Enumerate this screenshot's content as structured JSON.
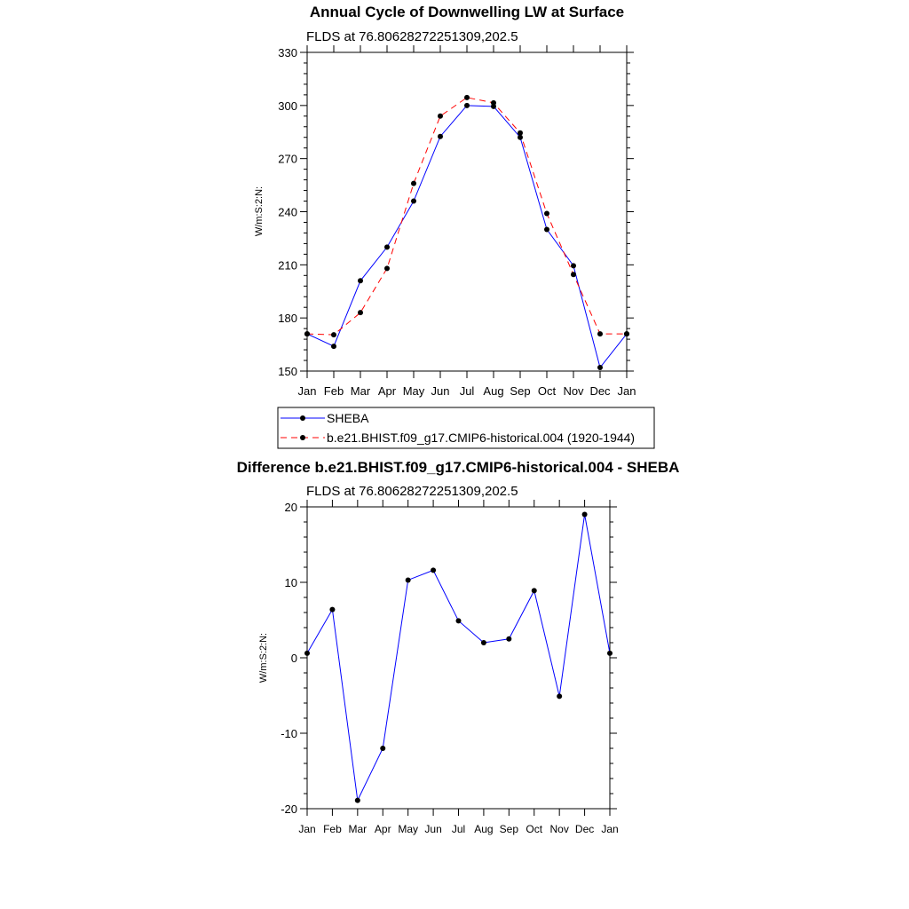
{
  "chart_data": [
    {
      "type": "line",
      "title": "Annual Cycle of Downwelling LW at Surface",
      "subtitle": "FLDS at 76.80628272251309,202.5",
      "xlabel": "",
      "ylabel": "W/m:S:2:N:",
      "categories": [
        "Jan",
        "Feb",
        "Mar",
        "Apr",
        "May",
        "Jun",
        "Jul",
        "Aug",
        "Sep",
        "Oct",
        "Nov",
        "Dec",
        "Jan"
      ],
      "ylim": [
        150,
        330
      ],
      "yticks": [
        150,
        180,
        210,
        240,
        270,
        300,
        330
      ],
      "series": [
        {
          "name": "SHEBA",
          "color": "#0000ff",
          "dash": "solid",
          "values": [
            171,
            164,
            201,
            220,
            246,
            282.5,
            300,
            299.5,
            282,
            230,
            209.5,
            152,
            171
          ]
        },
        {
          "name": "b.e21.BHIST.f09_g17.CMIP6-historical.004 (1920-1944)",
          "color": "#ff0000",
          "dash": "dashed",
          "values": [
            171,
            170.5,
            183,
            208,
            256,
            294,
            304.5,
            301.5,
            284.5,
            239,
            204.5,
            171,
            171
          ]
        }
      ],
      "legend": "below"
    },
    {
      "type": "line",
      "title": "Difference b.e21.BHIST.f09_g17.CMIP6-historical.004 - SHEBA",
      "subtitle": "FLDS at 76.80628272251309,202.5",
      "xlabel": "",
      "ylabel": "W/m:S:2:N:",
      "categories": [
        "Jan",
        "Feb",
        "Mar",
        "Apr",
        "May",
        "Jun",
        "Jul",
        "Aug",
        "Sep",
        "Oct",
        "Nov",
        "Dec",
        "Jan"
      ],
      "ylim": [
        -20,
        20
      ],
      "yticks": [
        -20,
        -10,
        0,
        10,
        20
      ],
      "series": [
        {
          "color": "#0000ff",
          "dash": "solid",
          "values": [
            0.6,
            6.4,
            -18.9,
            -12,
            10.3,
            11.6,
            4.9,
            2,
            2.5,
            8.9,
            -5.1,
            19,
            0.6
          ]
        }
      ]
    }
  ]
}
